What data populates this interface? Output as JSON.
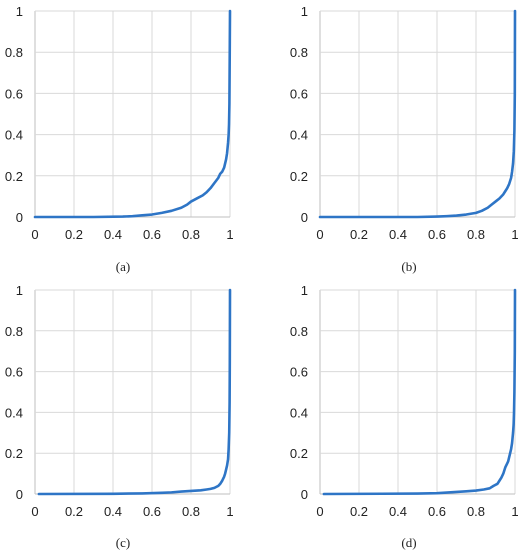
{
  "colors": {
    "curve": "#2E75C6",
    "grid": "#D9D9D9"
  },
  "chart_data": [
    {
      "type": "line",
      "caption": "(a)",
      "xlim": [
        0,
        1
      ],
      "ylim": [
        0,
        1
      ],
      "xticks": [
        "0",
        "0.2",
        "0.4",
        "0.6",
        "0.8",
        "1"
      ],
      "yticks": [
        "0",
        "0.2",
        "0.4",
        "0.6",
        "0.8",
        "1"
      ],
      "grid": true,
      "series": [
        {
          "x": [
            0,
            0.3,
            0.45,
            0.5,
            0.55,
            0.6,
            0.65,
            0.7,
            0.75,
            0.78,
            0.8,
            0.83,
            0.86,
            0.88,
            0.9,
            0.92,
            0.94,
            0.95,
            0.96,
            0.97,
            0.98,
            0.985,
            0.99,
            0.993,
            0.995,
            0.997,
            0.998,
            0.999,
            1.0
          ],
          "y": [
            0,
            0,
            0.002,
            0.004,
            0.008,
            0.012,
            0.02,
            0.03,
            0.045,
            0.06,
            0.075,
            0.09,
            0.105,
            0.12,
            0.14,
            0.165,
            0.19,
            0.21,
            0.22,
            0.24,
            0.28,
            0.31,
            0.36,
            0.4,
            0.45,
            0.55,
            0.7,
            0.85,
            1.0
          ]
        }
      ]
    },
    {
      "type": "line",
      "caption": "(b)",
      "xlim": [
        0,
        1
      ],
      "ylim": [
        0,
        1
      ],
      "xticks": [
        "0",
        "0.2",
        "0.4",
        "0.6",
        "0.8",
        "1"
      ],
      "yticks": [
        "0",
        "0.2",
        "0.4",
        "0.6",
        "0.8",
        "1"
      ],
      "grid": true,
      "series": [
        {
          "x": [
            0,
            0.5,
            0.6,
            0.65,
            0.7,
            0.75,
            0.8,
            0.83,
            0.86,
            0.88,
            0.9,
            0.92,
            0.94,
            0.95,
            0.96,
            0.97,
            0.98,
            0.985,
            0.99,
            0.994,
            0.997,
            0.999,
            1.0
          ],
          "y": [
            0,
            0,
            0.002,
            0.004,
            0.007,
            0.012,
            0.02,
            0.03,
            0.045,
            0.06,
            0.075,
            0.09,
            0.11,
            0.125,
            0.14,
            0.16,
            0.19,
            0.22,
            0.26,
            0.32,
            0.42,
            0.6,
            1.0
          ]
        }
      ]
    },
    {
      "type": "line",
      "caption": "(c)",
      "xlim": [
        0,
        1
      ],
      "ylim": [
        0,
        1
      ],
      "xticks": [
        "0",
        "0.2",
        "0.4",
        "0.6",
        "0.8",
        "1"
      ],
      "yticks": [
        "0",
        "0.2",
        "0.4",
        "0.6",
        "0.8",
        "1"
      ],
      "grid": true,
      "series": [
        {
          "x": [
            0.02,
            0.4,
            0.55,
            0.65,
            0.7,
            0.75,
            0.8,
            0.85,
            0.88,
            0.9,
            0.92,
            0.94,
            0.95,
            0.96,
            0.97,
            0.975,
            0.98,
            0.985,
            0.99,
            0.993,
            0.996,
            0.998,
            0.999,
            1.0
          ],
          "y": [
            0,
            0.001,
            0.003,
            0.006,
            0.008,
            0.012,
            0.015,
            0.018,
            0.022,
            0.025,
            0.03,
            0.04,
            0.05,
            0.065,
            0.085,
            0.1,
            0.12,
            0.14,
            0.17,
            0.22,
            0.3,
            0.45,
            0.65,
            1.0
          ]
        }
      ]
    },
    {
      "type": "line",
      "caption": "(d)",
      "xlim": [
        0,
        1
      ],
      "ylim": [
        0,
        1
      ],
      "xticks": [
        "0",
        "0.2",
        "0.4",
        "0.6",
        "0.8",
        "1"
      ],
      "yticks": [
        "0",
        "0.2",
        "0.4",
        "0.6",
        "0.8",
        "1"
      ],
      "grid": true,
      "series": [
        {
          "x": [
            0.02,
            0.5,
            0.6,
            0.65,
            0.7,
            0.75,
            0.8,
            0.84,
            0.87,
            0.89,
            0.91,
            0.92,
            0.93,
            0.94,
            0.95,
            0.96,
            0.965,
            0.975,
            0.98,
            0.985,
            0.99,
            0.993,
            0.995,
            0.997,
            0.999,
            1.0
          ],
          "y": [
            0,
            0.002,
            0.004,
            0.007,
            0.01,
            0.013,
            0.017,
            0.022,
            0.028,
            0.04,
            0.05,
            0.065,
            0.08,
            0.1,
            0.13,
            0.15,
            0.16,
            0.2,
            0.22,
            0.25,
            0.3,
            0.34,
            0.4,
            0.5,
            0.7,
            1.0
          ]
        }
      ]
    }
  ]
}
